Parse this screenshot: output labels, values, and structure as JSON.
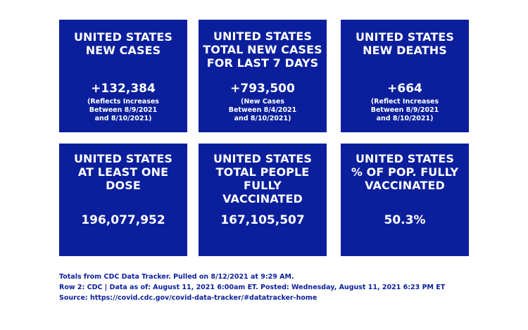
{
  "cards": [
    {
      "title": "UNITED STATES\nNEW CASES",
      "value": "+132,384",
      "note": "(Reflects Increases\nBetween 8/9/2021\nand 8/10/2021)"
    },
    {
      "title": "UNITED STATES\nTOTAL NEW CASES\nFOR LAST 7 DAYS",
      "value": "+793,500",
      "note": "(New Cases\nBetween 8/4/2021\nand 8/10/2021)"
    },
    {
      "title": "UNITED STATES\nNEW DEATHS",
      "value": "+664",
      "note": "(Reflect Increases\nBetween 8/9/2021\nand 8/10/2021)"
    },
    {
      "title": "UNITED STATES\nAT LEAST ONE\nDOSE",
      "value": "196,077,952"
    },
    {
      "title": "UNITED STATES\nTOTAL PEOPLE\nFULLY\nVACCINATED",
      "value": "167,105,507"
    },
    {
      "title": "UNITED STATES\n% OF POP. FULLY\nVACCINATED",
      "value": "50.3%"
    }
  ],
  "footer": {
    "line1": "Totals from CDC Data Tracker. Pulled on 8/12/2021 at 9:29 AM.",
    "line2": "Row 2: CDC | Data as of: August 11, 2021 6:00am ET. Posted: Wednesday, August 11, 2021 6:23 PM ET",
    "line3": "Source: https://covid.cdc.gov/covid-data-tracker/#datatracker-home"
  },
  "colors": {
    "card_background": "#0b1f9c",
    "text_on_card": "#ffffff",
    "footer_text": "#0b1f9c"
  }
}
